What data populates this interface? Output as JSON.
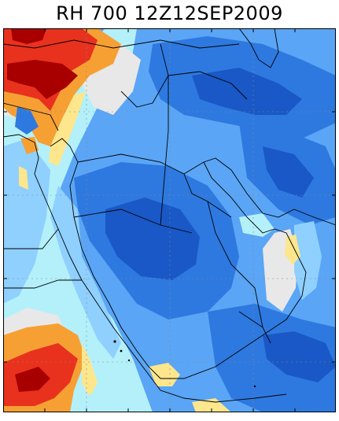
{
  "title": "RH 700 12Z12SEP2009",
  "palette": {
    "very_dry_red": "#a80000",
    "dry_red": "#e8321e",
    "orange": "#f6a034",
    "yellow": "#fde68c",
    "gray": "#e8e8e8",
    "light_cyan": "#b4f0fa",
    "light_blue": "#8fd0ff",
    "mid_blue": "#5aa5f5",
    "blue": "#2e79e0",
    "deep_blue": "#1958c6",
    "coastline": "#000000"
  }
}
